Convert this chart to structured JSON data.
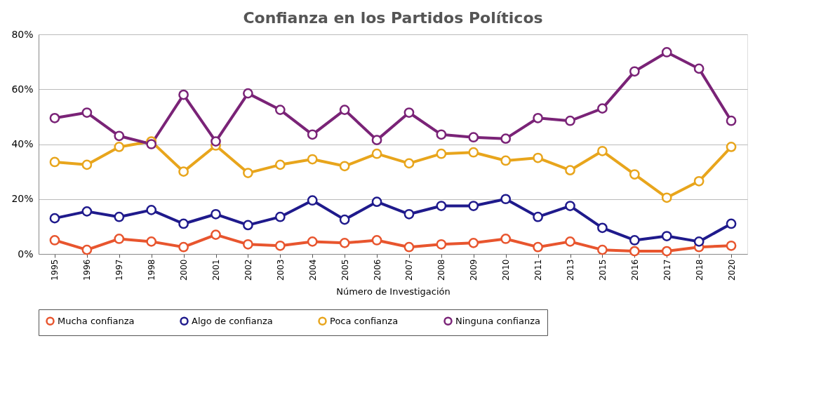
{
  "chart_data": {
    "type": "line",
    "title": "Confianza en los Partidos Políticos",
    "xlabel": "Número de Investigación",
    "categories": [
      "1995",
      "1996",
      "1997",
      "1998",
      "2000",
      "2001",
      "2002",
      "2003",
      "2004",
      "2005",
      "2006",
      "2007",
      "2008",
      "2009",
      "2010",
      "2011",
      "2013",
      "2015",
      "2016",
      "2017",
      "2018",
      "2020"
    ],
    "series": [
      {
        "name": "Mucha confianza",
        "color": "#e8552e",
        "values": [
          5,
          1.5,
          5.5,
          4.5,
          2.5,
          7,
          3.5,
          3,
          4.5,
          4,
          5,
          2.5,
          3.5,
          4,
          5.5,
          2.5,
          4.5,
          1.5,
          1,
          1,
          2.5,
          3
        ]
      },
      {
        "name": "Algo de confianza",
        "color": "#1f1a8c",
        "values": [
          13,
          15.5,
          13.5,
          16,
          11,
          14.5,
          10.5,
          13.5,
          19.5,
          12.5,
          19,
          14.5,
          17.5,
          17.5,
          20,
          13.5,
          17.5,
          9.5,
          5,
          6.5,
          4.5,
          11
        ]
      },
      {
        "name": "Poca confianza",
        "color": "#e8a51c",
        "values": [
          33.5,
          32.5,
          39,
          41,
          30,
          39.5,
          29.5,
          32.5,
          34.5,
          32,
          36.5,
          33,
          36.5,
          37,
          34,
          35,
          30.5,
          37.5,
          29,
          20.5,
          26.5,
          39
        ]
      },
      {
        "name": "Ninguna confianza",
        "color": "#7a2377",
        "values": [
          49.5,
          51.5,
          43,
          40,
          58,
          41,
          58.5,
          52.5,
          43.5,
          52.5,
          41.5,
          51.5,
          43.5,
          42.5,
          42,
          49.5,
          48.5,
          53,
          66.5,
          73.5,
          67.5,
          48.5
        ]
      }
    ],
    "ylim": [
      0,
      80
    ],
    "yticks": [
      {
        "value": 0,
        "label": "0%"
      },
      {
        "value": 20,
        "label": "20%"
      },
      {
        "value": 40,
        "label": "40%"
      },
      {
        "value": 60,
        "label": "60%"
      },
      {
        "value": 80,
        "label": "80%"
      }
    ],
    "grid": "y",
    "legend": "bottom",
    "marker": "circle",
    "line_style": "solid"
  }
}
